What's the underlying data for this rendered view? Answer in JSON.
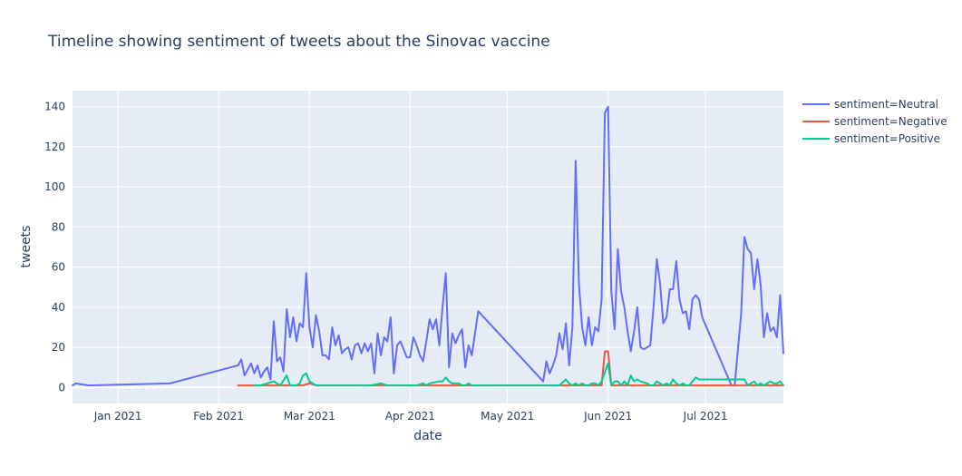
{
  "chart_data": {
    "type": "line",
    "title": "Timeline showing sentiment of tweets about the Sinovac vaccine",
    "xlabel": "date",
    "ylabel": "tweets",
    "x_range": [
      "2020-12-18",
      "2021-07-25"
    ],
    "ylim": [
      -8,
      148
    ],
    "x_ticks": [
      {
        "date": "2021-01-01",
        "label": "Jan 2021"
      },
      {
        "date": "2021-02-01",
        "label": "Feb 2021"
      },
      {
        "date": "2021-03-01",
        "label": "Mar 2021"
      },
      {
        "date": "2021-04-01",
        "label": "Apr 2021"
      },
      {
        "date": "2021-05-01",
        "label": "May 2021"
      },
      {
        "date": "2021-06-01",
        "label": "Jun 2021"
      },
      {
        "date": "2021-07-01",
        "label": "Jul 2021"
      }
    ],
    "y_ticks": [
      0,
      20,
      40,
      60,
      80,
      100,
      120,
      140
    ],
    "grid": true,
    "legend_position": "top-right",
    "series": [
      {
        "name": "sentiment=Neutral",
        "color": "#636efa",
        "points": [
          [
            "2020-12-18",
            1
          ],
          [
            "2020-12-19",
            2
          ],
          [
            "2020-12-23",
            1
          ],
          [
            "2021-01-17",
            2
          ],
          [
            "2021-02-07",
            11
          ],
          [
            "2021-02-08",
            14
          ],
          [
            "2021-02-09",
            6
          ],
          [
            "2021-02-11",
            12
          ],
          [
            "2021-02-12",
            7
          ],
          [
            "2021-02-13",
            11
          ],
          [
            "2021-02-14",
            5
          ],
          [
            "2021-02-15",
            8
          ],
          [
            "2021-02-16",
            10
          ],
          [
            "2021-02-17",
            4
          ],
          [
            "2021-02-18",
            33
          ],
          [
            "2021-02-19",
            13
          ],
          [
            "2021-02-20",
            15
          ],
          [
            "2021-02-21",
            8
          ],
          [
            "2021-02-22",
            39
          ],
          [
            "2021-02-23",
            25
          ],
          [
            "2021-02-24",
            35
          ],
          [
            "2021-02-25",
            23
          ],
          [
            "2021-02-26",
            32
          ],
          [
            "2021-02-27",
            30
          ],
          [
            "2021-02-28",
            57
          ],
          [
            "2021-03-01",
            30
          ],
          [
            "2021-03-02",
            20
          ],
          [
            "2021-03-03",
            36
          ],
          [
            "2021-03-04",
            28
          ],
          [
            "2021-03-05",
            16
          ],
          [
            "2021-03-06",
            16
          ],
          [
            "2021-03-07",
            14
          ],
          [
            "2021-03-08",
            30
          ],
          [
            "2021-03-09",
            21
          ],
          [
            "2021-03-10",
            26
          ],
          [
            "2021-03-11",
            17
          ],
          [
            "2021-03-12",
            19
          ],
          [
            "2021-03-13",
            20
          ],
          [
            "2021-03-14",
            14
          ],
          [
            "2021-03-15",
            21
          ],
          [
            "2021-03-16",
            22
          ],
          [
            "2021-03-17",
            17
          ],
          [
            "2021-03-18",
            22
          ],
          [
            "2021-03-19",
            18
          ],
          [
            "2021-03-20",
            22
          ],
          [
            "2021-03-21",
            7
          ],
          [
            "2021-03-22",
            27
          ],
          [
            "2021-03-23",
            16
          ],
          [
            "2021-03-24",
            25
          ],
          [
            "2021-03-25",
            23
          ],
          [
            "2021-03-26",
            35
          ],
          [
            "2021-03-27",
            7
          ],
          [
            "2021-03-28",
            21
          ],
          [
            "2021-03-29",
            23
          ],
          [
            "2021-03-30",
            19
          ],
          [
            "2021-03-31",
            15
          ],
          [
            "2021-04-01",
            15
          ],
          [
            "2021-04-02",
            25
          ],
          [
            "2021-04-03",
            21
          ],
          [
            "2021-04-04",
            16
          ],
          [
            "2021-04-05",
            13
          ],
          [
            "2021-04-06",
            23
          ],
          [
            "2021-04-07",
            34
          ],
          [
            "2021-04-08",
            29
          ],
          [
            "2021-04-09",
            34
          ],
          [
            "2021-04-10",
            21
          ],
          [
            "2021-04-11",
            40
          ],
          [
            "2021-04-12",
            57
          ],
          [
            "2021-04-13",
            10
          ],
          [
            "2021-04-14",
            27
          ],
          [
            "2021-04-15",
            22
          ],
          [
            "2021-04-16",
            26
          ],
          [
            "2021-04-17",
            29
          ],
          [
            "2021-04-18",
            10
          ],
          [
            "2021-04-19",
            21
          ],
          [
            "2021-04-20",
            16
          ],
          [
            "2021-04-22",
            38
          ],
          [
            "2021-05-12",
            3
          ],
          [
            "2021-05-13",
            13
          ],
          [
            "2021-05-14",
            7
          ],
          [
            "2021-05-15",
            11
          ],
          [
            "2021-05-16",
            16
          ],
          [
            "2021-05-17",
            27
          ],
          [
            "2021-05-18",
            19
          ],
          [
            "2021-05-19",
            32
          ],
          [
            "2021-05-20",
            11
          ],
          [
            "2021-05-21",
            30
          ],
          [
            "2021-05-22",
            113
          ],
          [
            "2021-05-23",
            52
          ],
          [
            "2021-05-24",
            30
          ],
          [
            "2021-05-25",
            21
          ],
          [
            "2021-05-26",
            35
          ],
          [
            "2021-05-27",
            21
          ],
          [
            "2021-05-28",
            30
          ],
          [
            "2021-05-29",
            28
          ],
          [
            "2021-05-30",
            44
          ],
          [
            "2021-05-31",
            137
          ],
          [
            "2021-06-01",
            140
          ],
          [
            "2021-06-02",
            48
          ],
          [
            "2021-06-03",
            29
          ],
          [
            "2021-06-04",
            69
          ],
          [
            "2021-06-05",
            48
          ],
          [
            "2021-06-06",
            40
          ],
          [
            "2021-06-07",
            28
          ],
          [
            "2021-06-08",
            18
          ],
          [
            "2021-06-09",
            28
          ],
          [
            "2021-06-10",
            40
          ],
          [
            "2021-06-11",
            20
          ],
          [
            "2021-06-12",
            19
          ],
          [
            "2021-06-13",
            20
          ],
          [
            "2021-06-14",
            21
          ],
          [
            "2021-06-15",
            40
          ],
          [
            "2021-06-16",
            64
          ],
          [
            "2021-06-17",
            52
          ],
          [
            "2021-06-18",
            32
          ],
          [
            "2021-06-19",
            35
          ],
          [
            "2021-06-20",
            49
          ],
          [
            "2021-06-21",
            49
          ],
          [
            "2021-06-22",
            63
          ],
          [
            "2021-06-23",
            44
          ],
          [
            "2021-06-24",
            37
          ],
          [
            "2021-06-25",
            38
          ],
          [
            "2021-06-26",
            29
          ],
          [
            "2021-06-27",
            44
          ],
          [
            "2021-06-28",
            46
          ],
          [
            "2021-06-29",
            44
          ],
          [
            "2021-06-30",
            35
          ],
          [
            "2021-07-09",
            1
          ],
          [
            "2021-07-10",
            1
          ],
          [
            "2021-07-12",
            37
          ],
          [
            "2021-07-13",
            75
          ],
          [
            "2021-07-14",
            69
          ],
          [
            "2021-07-15",
            67
          ],
          [
            "2021-07-16",
            49
          ],
          [
            "2021-07-17",
            64
          ],
          [
            "2021-07-18",
            51
          ],
          [
            "2021-07-19",
            25
          ],
          [
            "2021-07-20",
            37
          ],
          [
            "2021-07-21",
            28
          ],
          [
            "2021-07-22",
            30
          ],
          [
            "2021-07-23",
            25
          ],
          [
            "2021-07-24",
            46
          ],
          [
            "2021-07-25",
            17
          ]
        ]
      },
      {
        "name": "sentiment=Negative",
        "color": "#ef553b",
        "points": [
          [
            "2021-02-07",
            1
          ],
          [
            "2021-02-12",
            1
          ],
          [
            "2021-02-20",
            1
          ],
          [
            "2021-02-27",
            1
          ],
          [
            "2021-03-01",
            2
          ],
          [
            "2021-03-03",
            1
          ],
          [
            "2021-04-01",
            1
          ],
          [
            "2021-05-20",
            1
          ],
          [
            "2021-05-25",
            1
          ],
          [
            "2021-05-30",
            1
          ],
          [
            "2021-05-31",
            18
          ],
          [
            "2021-06-01",
            18
          ],
          [
            "2021-06-02",
            1
          ],
          [
            "2021-06-03",
            1
          ],
          [
            "2021-06-10",
            1
          ],
          [
            "2021-07-25",
            1
          ]
        ]
      },
      {
        "name": "sentiment=Positive",
        "color": "#00cc96",
        "points": [
          [
            "2021-02-12",
            1
          ],
          [
            "2021-02-14",
            1
          ],
          [
            "2021-02-16",
            2
          ],
          [
            "2021-02-18",
            3
          ],
          [
            "2021-02-19",
            2
          ],
          [
            "2021-02-20",
            1
          ],
          [
            "2021-02-22",
            6
          ],
          [
            "2021-02-23",
            1
          ],
          [
            "2021-02-24",
            1
          ],
          [
            "2021-02-25",
            1
          ],
          [
            "2021-02-26",
            2
          ],
          [
            "2021-02-27",
            6
          ],
          [
            "2021-02-28",
            7
          ],
          [
            "2021-03-01",
            3
          ],
          [
            "2021-03-02",
            2
          ],
          [
            "2021-03-03",
            1
          ],
          [
            "2021-03-10",
            1
          ],
          [
            "2021-03-15",
            1
          ],
          [
            "2021-03-20",
            1
          ],
          [
            "2021-03-23",
            2
          ],
          [
            "2021-03-25",
            1
          ],
          [
            "2021-03-30",
            1
          ],
          [
            "2021-04-01",
            1
          ],
          [
            "2021-04-03",
            1
          ],
          [
            "2021-04-05",
            2
          ],
          [
            "2021-04-06",
            1
          ],
          [
            "2021-04-07",
            2
          ],
          [
            "2021-04-10",
            3
          ],
          [
            "2021-04-11",
            3
          ],
          [
            "2021-04-12",
            5
          ],
          [
            "2021-04-13",
            3
          ],
          [
            "2021-04-14",
            2
          ],
          [
            "2021-04-15",
            2
          ],
          [
            "2021-04-16",
            2
          ],
          [
            "2021-04-17",
            1
          ],
          [
            "2021-04-18",
            1
          ],
          [
            "2021-04-19",
            2
          ],
          [
            "2021-04-20",
            1
          ],
          [
            "2021-04-22",
            1
          ],
          [
            "2021-05-17",
            1
          ],
          [
            "2021-05-19",
            4
          ],
          [
            "2021-05-20",
            2
          ],
          [
            "2021-05-21",
            1
          ],
          [
            "2021-05-22",
            2
          ],
          [
            "2021-05-23",
            1
          ],
          [
            "2021-05-24",
            2
          ],
          [
            "2021-05-25",
            1
          ],
          [
            "2021-05-26",
            1
          ],
          [
            "2021-05-27",
            2
          ],
          [
            "2021-05-28",
            2
          ],
          [
            "2021-05-29",
            1
          ],
          [
            "2021-05-30",
            3
          ],
          [
            "2021-06-01",
            12
          ],
          [
            "2021-06-02",
            1
          ],
          [
            "2021-06-03",
            3
          ],
          [
            "2021-06-04",
            3
          ],
          [
            "2021-06-05",
            1
          ],
          [
            "2021-06-06",
            3
          ],
          [
            "2021-06-07",
            1
          ],
          [
            "2021-06-08",
            6
          ],
          [
            "2021-06-09",
            3
          ],
          [
            "2021-06-10",
            4
          ],
          [
            "2021-06-11",
            3
          ],
          [
            "2021-06-13",
            2
          ],
          [
            "2021-06-14",
            1
          ],
          [
            "2021-06-15",
            1
          ],
          [
            "2021-06-16",
            3
          ],
          [
            "2021-06-17",
            2
          ],
          [
            "2021-06-18",
            1
          ],
          [
            "2021-06-19",
            2
          ],
          [
            "2021-06-20",
            1
          ],
          [
            "2021-06-21",
            4
          ],
          [
            "2021-06-22",
            2
          ],
          [
            "2021-06-23",
            1
          ],
          [
            "2021-06-24",
            2
          ],
          [
            "2021-06-25",
            1
          ],
          [
            "2021-06-26",
            1
          ],
          [
            "2021-06-27",
            3
          ],
          [
            "2021-06-28",
            5
          ],
          [
            "2021-06-29",
            4
          ],
          [
            "2021-07-10",
            4
          ],
          [
            "2021-07-11",
            4
          ],
          [
            "2021-07-12",
            4
          ],
          [
            "2021-07-13",
            4
          ],
          [
            "2021-07-14",
            1
          ],
          [
            "2021-07-15",
            2
          ],
          [
            "2021-07-16",
            3
          ],
          [
            "2021-07-17",
            1
          ],
          [
            "2021-07-18",
            2
          ],
          [
            "2021-07-19",
            1
          ],
          [
            "2021-07-20",
            2
          ],
          [
            "2021-07-21",
            3
          ],
          [
            "2021-07-22",
            2
          ],
          [
            "2021-07-23",
            2
          ],
          [
            "2021-07-24",
            3
          ],
          [
            "2021-07-25",
            1
          ]
        ]
      }
    ]
  }
}
